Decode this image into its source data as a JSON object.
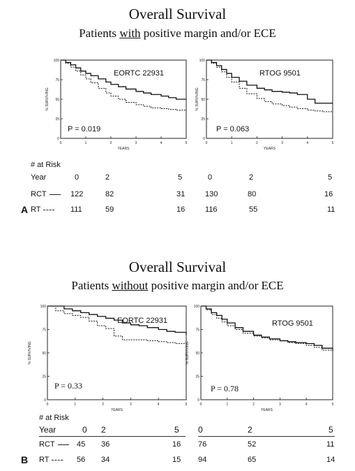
{
  "panelA": {
    "letter": "A",
    "title": "Overall Survival",
    "subtitle_pre": "Patients ",
    "subtitle_u": "with",
    "subtitle_post": " positive margin and/or ECE",
    "risk_header": "# at Risk",
    "year_label": "Year",
    "rct_label": "RCT",
    "rt_label": "RT",
    "left_years": [
      "0",
      "2",
      "5"
    ],
    "right_years": [
      "0",
      "2",
      "5"
    ],
    "rct_left": [
      "122",
      "82",
      "31"
    ],
    "rct_right": [
      "130",
      "80",
      "16"
    ],
    "rt_left": [
      "111",
      "59",
      "16"
    ],
    "rt_right": [
      "116",
      "55",
      "11"
    ]
  },
  "panelB": {
    "letter": "B",
    "title": "Overall Survival",
    "subtitle_pre": "Patients ",
    "subtitle_u": "without",
    "subtitle_post": " positive margin and/or ECE",
    "risk_header": "# at Risk",
    "year_label": "Year",
    "rct_label": "RCT",
    "rt_label": "RT",
    "left_years": [
      "0",
      "2",
      "5"
    ],
    "right_years": [
      "0",
      "2",
      "5"
    ],
    "rct_left": [
      "45",
      "36",
      "16"
    ],
    "rct_right": [
      "76",
      "52",
      "11"
    ],
    "rt_left": [
      "56",
      "34",
      "15"
    ],
    "rt_right": [
      "94",
      "65",
      "14"
    ]
  },
  "chart_data": [
    {
      "type": "line",
      "name": "EORTC 22931",
      "pvalue": "P = 0.019",
      "xlabel": "YEARS",
      "ylabel": "% SURVIVING",
      "xticks": [
        "0",
        "1",
        "2",
        "3",
        "4",
        "5"
      ],
      "yticks": [
        "0",
        "25",
        "50",
        "75",
        "100"
      ],
      "xlim": [
        0,
        5
      ],
      "ylim": [
        0,
        100
      ],
      "series": [
        {
          "style": "solid",
          "x": [
            0,
            0.2,
            0.4,
            0.6,
            0.8,
            1,
            1.2,
            1.5,
            1.8,
            2,
            2.3,
            2.6,
            3,
            3.3,
            3.6,
            4,
            4.3,
            4.6,
            5
          ],
          "y": [
            100,
            97,
            94,
            90,
            86,
            83,
            80,
            76,
            72,
            69,
            66,
            63,
            60,
            58,
            56,
            54,
            52,
            50,
            50
          ]
        },
        {
          "style": "dashed",
          "x": [
            0,
            0.2,
            0.4,
            0.6,
            0.8,
            1,
            1.2,
            1.5,
            1.8,
            2,
            2.3,
            2.6,
            3,
            3.3,
            3.6,
            4,
            4.3,
            4.6,
            5
          ],
          "y": [
            100,
            96,
            91,
            86,
            81,
            76,
            71,
            64,
            58,
            54,
            50,
            46,
            43,
            41,
            39,
            38,
            37,
            36,
            36
          ]
        }
      ]
    },
    {
      "type": "line",
      "name": "RTOG 9501",
      "pvalue": "P = 0.063",
      "xlabel": "YEARS",
      "ylabel": "% SURVIVING",
      "xticks": [
        "0",
        "1",
        "2",
        "3",
        "4",
        "5"
      ],
      "yticks": [
        "0",
        "25",
        "50",
        "75",
        "100"
      ],
      "xlim": [
        0,
        5
      ],
      "ylim": [
        0,
        100
      ],
      "series": [
        {
          "style": "solid",
          "x": [
            0,
            0.2,
            0.4,
            0.6,
            0.8,
            1,
            1.3,
            1.6,
            2,
            2.3,
            2.6,
            3,
            3.3,
            3.6,
            4,
            4.3,
            4.6,
            5
          ],
          "y": [
            100,
            97,
            93,
            88,
            83,
            78,
            73,
            68,
            64,
            62,
            60,
            59,
            58,
            56,
            50,
            45,
            45,
            45
          ]
        },
        {
          "style": "dashed",
          "x": [
            0,
            0.2,
            0.4,
            0.6,
            0.8,
            1,
            1.3,
            1.6,
            2,
            2.3,
            2.6,
            3,
            3.3,
            3.6,
            4,
            4.3,
            4.6,
            5
          ],
          "y": [
            100,
            96,
            91,
            85,
            78,
            72,
            64,
            57,
            51,
            47,
            44,
            42,
            40,
            38,
            36,
            35,
            34,
            34
          ]
        }
      ]
    },
    {
      "type": "line",
      "name": "EORTC 22931",
      "pvalue": "P = 0.33",
      "xlabel": "YEARS",
      "ylabel": "% SURVIVING",
      "xticks": [
        "0",
        "1",
        "2",
        "3",
        "4",
        "5"
      ],
      "yticks": [
        "0",
        "25",
        "50",
        "75",
        "100"
      ],
      "xlim": [
        0,
        5
      ],
      "ylim": [
        0,
        100
      ],
      "series": [
        {
          "style": "solid",
          "x": [
            0,
            0.3,
            0.6,
            0.9,
            1.2,
            1.5,
            1.8,
            2.1,
            2.4,
            2.7,
            3,
            3.3,
            3.6,
            4,
            4.3,
            4.6,
            5
          ],
          "y": [
            100,
            100,
            97,
            95,
            93,
            91,
            89,
            87,
            85,
            82,
            80,
            79,
            77,
            75,
            73,
            72,
            69
          ]
        },
        {
          "style": "dashed",
          "x": [
            0,
            0.3,
            0.6,
            0.9,
            1.2,
            1.5,
            1.8,
            2.1,
            2.4,
            2.7,
            3,
            3.3,
            3.6,
            4,
            4.3,
            4.6,
            5
          ],
          "y": [
            100,
            95,
            92,
            90,
            88,
            84,
            79,
            76,
            68,
            64,
            64,
            64,
            63,
            62,
            61,
            60,
            58
          ]
        }
      ]
    },
    {
      "type": "line",
      "name": "RTOG 9501",
      "pvalue": "P = 0.78",
      "xlabel": "YEARS",
      "ylabel": "% SURVIVING",
      "xticks": [
        "0",
        "1",
        "2",
        "3",
        "4",
        "5"
      ],
      "yticks": [
        "0",
        "25",
        "50",
        "75",
        "100"
      ],
      "xlim": [
        0,
        5
      ],
      "ylim": [
        0,
        100
      ],
      "series": [
        {
          "style": "solid",
          "x": [
            0,
            0.2,
            0.4,
            0.6,
            0.8,
            1,
            1.3,
            1.6,
            2,
            2.3,
            2.6,
            3,
            3.3,
            3.6,
            4,
            4.3,
            4.6,
            5
          ],
          "y": [
            100,
            97,
            93,
            90,
            86,
            82,
            77,
            73,
            69,
            67,
            65,
            63,
            62,
            61,
            60,
            58,
            55,
            52
          ]
        },
        {
          "style": "dashed",
          "x": [
            0,
            0.2,
            0.4,
            0.6,
            0.8,
            1,
            1.3,
            1.6,
            2,
            2.3,
            2.6,
            3,
            3.3,
            3.6,
            4,
            4.3,
            4.6,
            5
          ],
          "y": [
            100,
            96,
            91,
            87,
            83,
            79,
            75,
            71,
            68,
            66,
            64,
            63,
            61,
            60,
            58,
            56,
            53,
            50
          ]
        }
      ]
    }
  ]
}
